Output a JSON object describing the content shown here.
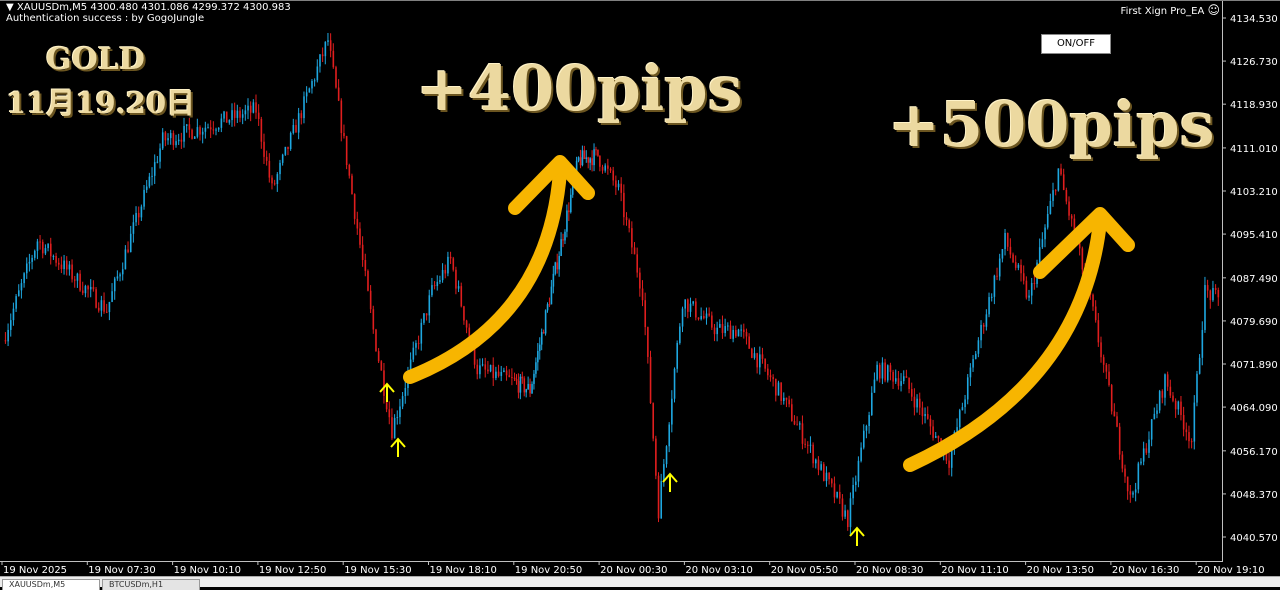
{
  "header": {
    "symbol_line": "XAUUSDm,M5  4300.480 4301.086 4299.372 4300.983",
    "auth_line": "Authentication success : by GogoJungle",
    "ea_name": "First Xign Pro_EA",
    "ea_icon": "smiley-icon",
    "onoff_label": "ON/OFF"
  },
  "annotations": {
    "title": "GOLD",
    "date": "11月19.20日",
    "gain1": "+400pips",
    "gain2": "+500pips",
    "arrow_color": "#f7b500",
    "marker_color": "#ffff00"
  },
  "chart_data": {
    "type": "candlestick",
    "symbol": "XAUUSDm",
    "timeframe": "M5",
    "bull_color": "#1ea7e0",
    "bear_color": "#e01e1e",
    "background": "#000000",
    "grid": false,
    "ylim": [
      4038.0,
      4137.0
    ],
    "y_ticks": [
      "4134.530",
      "4126.730",
      "4118.930",
      "4111.010",
      "4103.210",
      "4095.410",
      "4087.490",
      "4079.690",
      "4071.890",
      "4064.090",
      "4056.170",
      "4048.370",
      "4040.570"
    ],
    "x_ticks": [
      "19 Nov 2025",
      "19 Nov 07:30",
      "19 Nov 10:10",
      "19 Nov 12:50",
      "19 Nov 15:30",
      "19 Nov 18:10",
      "19 Nov 20:50",
      "20 Nov 00:30",
      "20 Nov 03:10",
      "20 Nov 05:50",
      "20 Nov 08:30",
      "20 Nov 11:10",
      "20 Nov 13:50",
      "20 Nov 16:30",
      "20 Nov 19:10"
    ],
    "price_path": [
      {
        "t": "19 Nov 04:55",
        "p": 4076.2
      },
      {
        "t": "19 Nov 06:00",
        "p": 4094.3
      },
      {
        "t": "19 Nov 08:10",
        "p": 4081.7
      },
      {
        "t": "19 Nov 09:55",
        "p": 4112.4
      },
      {
        "t": "19 Nov 12:50",
        "p": 4117.9
      },
      {
        "t": "19 Nov 13:20",
        "p": 4103.4
      },
      {
        "t": "19 Nov 15:05",
        "p": 4130.5
      },
      {
        "t": "19 Nov 16:30",
        "p": 4078.0
      },
      {
        "t": "19 Nov 17:05",
        "p": 4060.0
      },
      {
        "t": "19 Nov 18:20",
        "p": 4085.0
      },
      {
        "t": "19 Nov 18:55",
        "p": 4090.7
      },
      {
        "t": "19 Nov 19:45",
        "p": 4071.0
      },
      {
        "t": "19 Nov 21:35",
        "p": 4067.2
      },
      {
        "t": "19 Nov 23:40",
        "p": 4108.8
      },
      {
        "t": "20 Nov 00:30",
        "p": 4109.7
      },
      {
        "t": "20 Nov 01:10",
        "p": 4103.4
      },
      {
        "t": "20 Nov 01:55",
        "p": 4085.0
      },
      {
        "t": "20 Nov 02:25",
        "p": 4045.5
      },
      {
        "t": "20 Nov 03:10",
        "p": 4083.5
      },
      {
        "t": "20 Nov 04:15",
        "p": 4078.0
      },
      {
        "t": "20 Nov 04:55",
        "p": 4078.0
      },
      {
        "t": "20 Nov 06:10",
        "p": 4067.0
      },
      {
        "t": "20 Nov 08:20",
        "p": 4043.7
      },
      {
        "t": "20 Nov 09:15",
        "p": 4071.0
      },
      {
        "t": "20 Nov 10:05",
        "p": 4069.0
      },
      {
        "t": "20 Nov 11:30",
        "p": 4054.5
      },
      {
        "t": "20 Nov 12:25",
        "p": 4076.2
      },
      {
        "t": "20 Nov 13:15",
        "p": 4094.3
      },
      {
        "t": "20 Nov 14:00",
        "p": 4083.5
      },
      {
        "t": "20 Nov 14:55",
        "p": 4107.0
      },
      {
        "t": "20 Nov 15:55",
        "p": 4083.5
      },
      {
        "t": "20 Nov 16:40",
        "p": 4061.8
      },
      {
        "t": "20 Nov 17:10",
        "p": 4047.3
      },
      {
        "t": "20 Nov 18:15",
        "p": 4069.0
      },
      {
        "t": "20 Nov 19:05",
        "p": 4058.1
      },
      {
        "t": "20 Nov 19:30",
        "p": 4085.0
      },
      {
        "t": "20 Nov 19:55",
        "p": 4083.5
      }
    ],
    "last_ohlc": {
      "open": 4300.48,
      "high": 4301.086,
      "low": 4299.372,
      "close": 4300.983
    }
  },
  "tabs": [
    {
      "label": "XAUUSDm,M5"
    },
    {
      "label": "BTCUSDm,H1"
    }
  ]
}
